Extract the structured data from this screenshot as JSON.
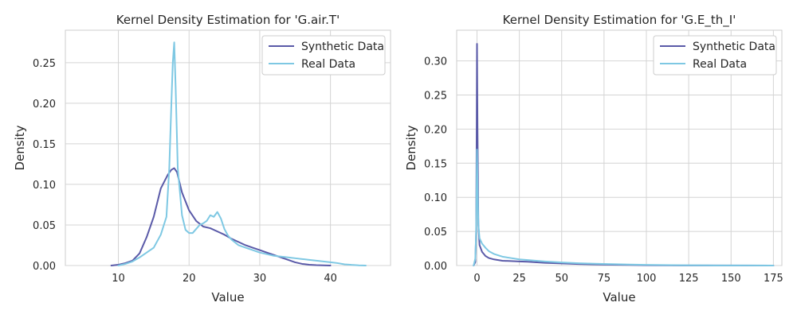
{
  "chart_data": [
    {
      "type": "line",
      "title": "Kernel Density Estimation for 'G.air.T'",
      "xlabel": "Value",
      "ylabel": "Density",
      "xlim": [
        2.5,
        48.5
      ],
      "ylim": [
        0,
        0.29
      ],
      "xticks": [
        10,
        20,
        30,
        40
      ],
      "xtick_labels": [
        "10",
        "20",
        "30",
        "40"
      ],
      "yticks": [
        0,
        0.05,
        0.1,
        0.15,
        0.2,
        0.25
      ],
      "ytick_labels": [
        "0.00",
        "0.05",
        "0.10",
        "0.15",
        "0.20",
        "0.25"
      ],
      "grid": true,
      "legend_position": "top-right",
      "series": [
        {
          "name": "Synthetic Data",
          "color": "#5a5aa8",
          "points": [
            [
              9,
              0
            ],
            [
              10,
              0.001
            ],
            [
              11,
              0.003
            ],
            [
              12,
              0.006
            ],
            [
              13,
              0.015
            ],
            [
              14,
              0.035
            ],
            [
              15,
              0.06
            ],
            [
              16,
              0.095
            ],
            [
              17,
              0.112
            ],
            [
              17.5,
              0.118
            ],
            [
              17.9,
              0.12
            ],
            [
              18.3,
              0.115
            ],
            [
              19,
              0.09
            ],
            [
              20,
              0.068
            ],
            [
              21,
              0.055
            ],
            [
              22,
              0.048
            ],
            [
              23,
              0.046
            ],
            [
              24,
              0.042
            ],
            [
              25,
              0.038
            ],
            [
              26,
              0.033
            ],
            [
              27,
              0.029
            ],
            [
              28,
              0.025
            ],
            [
              29,
              0.022
            ],
            [
              30,
              0.019
            ],
            [
              31,
              0.016
            ],
            [
              32,
              0.013
            ],
            [
              33,
              0.01
            ],
            [
              34,
              0.007
            ],
            [
              35,
              0.004
            ],
            [
              36,
              0.002
            ],
            [
              37,
              0.001
            ],
            [
              38,
              0.0005
            ],
            [
              40,
              0
            ]
          ]
        },
        {
          "name": "Real Data",
          "color": "#7ec8e3",
          "points": [
            [
              10,
              0
            ],
            [
              11,
              0.002
            ],
            [
              12,
              0.005
            ],
            [
              13,
              0.01
            ],
            [
              14,
              0.016
            ],
            [
              15,
              0.022
            ],
            [
              16,
              0.038
            ],
            [
              16.8,
              0.06
            ],
            [
              17.2,
              0.12
            ],
            [
              17.5,
              0.2
            ],
            [
              17.7,
              0.25
            ],
            [
              17.9,
              0.275
            ],
            [
              18.1,
              0.22
            ],
            [
              18.4,
              0.12
            ],
            [
              19,
              0.062
            ],
            [
              19.5,
              0.044
            ],
            [
              20,
              0.04
            ],
            [
              20.5,
              0.04
            ],
            [
              21,
              0.045
            ],
            [
              21.5,
              0.05
            ],
            [
              22,
              0.052
            ],
            [
              22.5,
              0.055
            ],
            [
              23,
              0.062
            ],
            [
              23.5,
              0.06
            ],
            [
              24,
              0.066
            ],
            [
              24.5,
              0.058
            ],
            [
              25,
              0.045
            ],
            [
              25.5,
              0.037
            ],
            [
              26,
              0.032
            ],
            [
              27,
              0.025
            ],
            [
              28,
              0.022
            ],
            [
              29,
              0.019
            ],
            [
              30,
              0.016
            ],
            [
              31,
              0.014
            ],
            [
              32,
              0.012
            ],
            [
              33,
              0.011
            ],
            [
              34,
              0.01
            ],
            [
              35,
              0.009
            ],
            [
              36,
              0.008
            ],
            [
              37,
              0.007
            ],
            [
              38,
              0.006
            ],
            [
              39,
              0.005
            ],
            [
              40,
              0.004
            ],
            [
              41,
              0.003
            ],
            [
              42,
              0.0015
            ],
            [
              43,
              0.0008
            ],
            [
              44,
              0.0003
            ],
            [
              45,
              0
            ]
          ]
        }
      ]
    },
    {
      "type": "line",
      "title": "Kernel Density Estimation for 'G.E_th_I'",
      "xlabel": "Value",
      "ylabel": "Density",
      "xlim": [
        -12,
        180
      ],
      "ylim": [
        0,
        0.345
      ],
      "xticks": [
        0,
        25,
        50,
        75,
        100,
        125,
        150,
        175
      ],
      "xtick_labels": [
        "0",
        "25",
        "50",
        "75",
        "100",
        "125",
        "150",
        "175"
      ],
      "yticks": [
        0,
        0.05,
        0.1,
        0.15,
        0.2,
        0.25,
        0.3
      ],
      "ytick_labels": [
        "0.00",
        "0.05",
        "0.10",
        "0.15",
        "0.20",
        "0.25",
        "0.30"
      ],
      "grid": true,
      "legend_position": "top-right",
      "series": [
        {
          "name": "Synthetic Data",
          "color": "#5a5aa8",
          "points": [
            [
              -2,
              0
            ],
            [
              -1,
              0.005
            ],
            [
              -0.5,
              0.05
            ],
            [
              -0.2,
              0.2
            ],
            [
              0,
              0.325
            ],
            [
              0.3,
              0.2
            ],
            [
              0.8,
              0.06
            ],
            [
              1.5,
              0.03
            ],
            [
              3,
              0.02
            ],
            [
              5,
              0.014
            ],
            [
              7,
              0.011
            ],
            [
              10,
              0.009
            ],
            [
              15,
              0.007
            ],
            [
              20,
              0.0065
            ],
            [
              25,
              0.006
            ],
            [
              30,
              0.0055
            ],
            [
              40,
              0.004
            ],
            [
              50,
              0.003
            ],
            [
              60,
              0.0022
            ],
            [
              70,
              0.0016
            ],
            [
              80,
              0.0012
            ],
            [
              90,
              0.0008
            ],
            [
              100,
              0.0005
            ],
            [
              110,
              0.0003
            ],
            [
              120,
              0.0002
            ],
            [
              140,
              0.0001
            ],
            [
              175,
              0
            ]
          ]
        },
        {
          "name": "Real Data",
          "color": "#7ec8e3",
          "points": [
            [
              -2,
              0
            ],
            [
              -1,
              0.01
            ],
            [
              -0.5,
              0.05
            ],
            [
              -0.2,
              0.12
            ],
            [
              0,
              0.17
            ],
            [
              0.3,
              0.12
            ],
            [
              0.8,
              0.06
            ],
            [
              1.5,
              0.04
            ],
            [
              3,
              0.032
            ],
            [
              5,
              0.026
            ],
            [
              7,
              0.021
            ],
            [
              10,
              0.017
            ],
            [
              15,
              0.013
            ],
            [
              20,
              0.011
            ],
            [
              25,
              0.009
            ],
            [
              30,
              0.008
            ],
            [
              40,
              0.006
            ],
            [
              50,
              0.0045
            ],
            [
              60,
              0.0034
            ],
            [
              70,
              0.0026
            ],
            [
              80,
              0.002
            ],
            [
              90,
              0.0014
            ],
            [
              100,
              0.001
            ],
            [
              110,
              0.0007
            ],
            [
              120,
              0.0005
            ],
            [
              140,
              0.0002
            ],
            [
              160,
              0.0001
            ],
            [
              175,
              0
            ]
          ]
        }
      ]
    }
  ]
}
